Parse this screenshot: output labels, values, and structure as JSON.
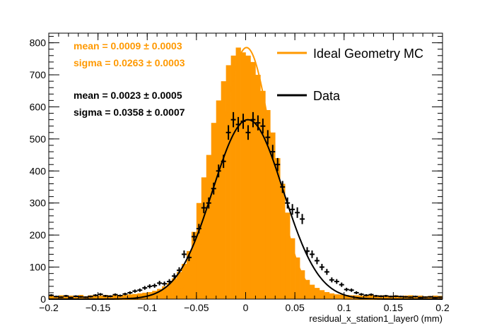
{
  "chart_data": {
    "type": "bar",
    "title": "",
    "xlabel": "residual_x_station1_layer0 (mm)",
    "ylabel": "",
    "xlim": [
      -0.2,
      0.2
    ],
    "ylim": [
      0,
      830
    ],
    "xticks": [
      "−0.2",
      "−0.15",
      "−0.1",
      "−0.05",
      "0",
      "0.05",
      "0.1",
      "0.15",
      "0.2"
    ],
    "yticks": [
      "0",
      "100",
      "200",
      "300",
      "400",
      "500",
      "600",
      "700",
      "800"
    ],
    "bin_width": 0.005,
    "series": [
      {
        "name": "Ideal Geometry MC",
        "color": "#ff9900",
        "style": "filled-histogram-with-gaussian-fit",
        "x": [
          -0.1975,
          -0.1925,
          -0.1875,
          -0.1825,
          -0.1775,
          -0.1725,
          -0.1675,
          -0.1625,
          -0.1575,
          -0.1525,
          -0.1475,
          -0.1425,
          -0.1375,
          -0.1325,
          -0.1275,
          -0.1225,
          -0.1175,
          -0.1125,
          -0.1075,
          -0.1025,
          -0.0975,
          -0.0925,
          -0.0875,
          -0.0825,
          -0.0775,
          -0.0725,
          -0.0675,
          -0.0625,
          -0.0575,
          -0.0525,
          -0.0475,
          -0.0425,
          -0.0375,
          -0.0325,
          -0.0275,
          -0.0225,
          -0.0175,
          -0.0125,
          -0.0075,
          -0.0025,
          0.0025,
          0.0075,
          0.0125,
          0.0175,
          0.0225,
          0.0275,
          0.0325,
          0.0375,
          0.0425,
          0.0475,
          0.0525,
          0.0575,
          0.0625,
          0.0675,
          0.0725,
          0.0775,
          0.0825,
          0.0875,
          0.0925,
          0.0975,
          0.1025,
          0.1075,
          0.1125,
          0.1175,
          0.1225,
          0.1275,
          0.1325,
          0.1375,
          0.1425,
          0.1475,
          0.1525,
          0.1575,
          0.1625,
          0.1675,
          0.1725,
          0.1775,
          0.1825,
          0.1875,
          0.1925,
          0.1975
        ],
        "values": [
          10,
          8,
          12,
          9,
          11,
          10,
          13,
          9,
          12,
          10,
          11,
          13,
          12,
          14,
          12,
          13,
          15,
          16,
          18,
          20,
          22,
          26,
          32,
          40,
          50,
          65,
          85,
          110,
          150,
          210,
          300,
          380,
          450,
          550,
          620,
          680,
          730,
          760,
          785,
          770,
          760,
          740,
          700,
          650,
          590,
          520,
          440,
          360,
          270,
          190,
          130,
          90,
          60,
          45,
          35,
          28,
          22,
          18,
          15,
          14,
          13,
          12,
          12,
          11,
          12,
          13,
          11,
          12,
          10,
          11,
          12,
          10,
          11,
          12,
          10,
          11,
          9,
          10,
          11,
          10
        ],
        "fit": {
          "mean": 0.0009,
          "sigma": 0.0263
        },
        "stats": {
          "mean_text": "mean = 0.0009 ± 0.0003",
          "sigma_text": "sigma = 0.0263 ± 0.0003"
        }
      },
      {
        "name": "Data",
        "color": "#000000",
        "style": "points-with-error-bars-and-gaussian-fit",
        "x": [
          -0.1975,
          -0.1925,
          -0.1875,
          -0.1825,
          -0.1775,
          -0.1725,
          -0.1675,
          -0.1625,
          -0.1575,
          -0.1525,
          -0.1475,
          -0.1425,
          -0.1375,
          -0.1325,
          -0.1275,
          -0.1225,
          -0.1175,
          -0.1125,
          -0.1075,
          -0.1025,
          -0.0975,
          -0.0925,
          -0.0875,
          -0.0825,
          -0.0775,
          -0.0725,
          -0.0675,
          -0.0625,
          -0.0575,
          -0.0525,
          -0.0475,
          -0.0425,
          -0.0375,
          -0.0325,
          -0.0275,
          -0.0225,
          -0.0175,
          -0.0125,
          -0.0075,
          -0.0025,
          0.0025,
          0.0075,
          0.0125,
          0.0175,
          0.0225,
          0.0275,
          0.0325,
          0.0375,
          0.0425,
          0.0475,
          0.0525,
          0.0575,
          0.0625,
          0.0675,
          0.0725,
          0.0775,
          0.0825,
          0.0875,
          0.0925,
          0.0975,
          0.1025,
          0.1075,
          0.1125,
          0.1175,
          0.1225,
          0.1275,
          0.1325,
          0.1375,
          0.1425,
          0.1475,
          0.1525,
          0.1575,
          0.1625,
          0.1675,
          0.1725,
          0.1775,
          0.1825,
          0.1875,
          0.1925,
          0.1975
        ],
        "values": [
          12,
          8,
          6,
          10,
          5,
          9,
          7,
          6,
          8,
          12,
          15,
          10,
          9,
          14,
          11,
          16,
          20,
          25,
          28,
          35,
          40,
          42,
          50,
          48,
          55,
          72,
          90,
          140,
          130,
          195,
          220,
          285,
          300,
          345,
          400,
          430,
          520,
          560,
          545,
          555,
          520,
          560,
          550,
          540,
          505,
          460,
          420,
          350,
          300,
          280,
          270,
          250,
          150,
          140,
          120,
          100,
          85,
          60,
          55,
          45,
          30,
          28,
          20,
          15,
          12,
          14,
          10,
          9,
          10,
          8,
          9,
          8,
          7,
          6,
          8,
          5,
          6,
          7,
          5,
          6
        ],
        "fit": {
          "mean": 0.0023,
          "sigma": 0.0358
        },
        "stats": {
          "mean_text": "mean = 0.0023 ± 0.0005",
          "sigma_text": "sigma = 0.0358 ± 0.0007"
        }
      }
    ],
    "legend": {
      "placement": "top-right"
    },
    "grid": false
  }
}
